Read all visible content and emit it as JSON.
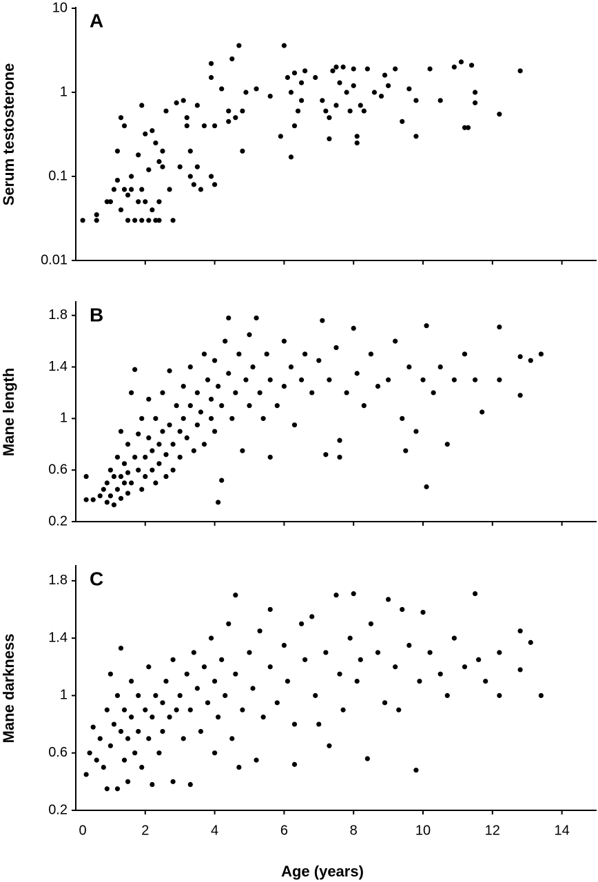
{
  "chart_data": [
    {
      "type": "scatter",
      "panel": "A",
      "y_label": "Serum testosterone",
      "log_y": true,
      "color": "#000000",
      "xlim": [
        0,
        15
      ],
      "xticks": [
        0,
        2,
        4,
        6,
        8,
        10,
        12,
        14
      ],
      "ylim": [
        0.01,
        10
      ],
      "yticks": [
        0.01,
        0.1,
        1,
        10
      ],
      "x": [
        0.2,
        0.6,
        0.6,
        0.9,
        1.0,
        1.1,
        1.2,
        1.2,
        1.3,
        1.3,
        1.4,
        1.4,
        1.5,
        1.5,
        1.6,
        1.6,
        1.7,
        1.8,
        1.8,
        1.9,
        1.9,
        1.9,
        2.0,
        2.0,
        2.1,
        2.1,
        2.2,
        2.2,
        2.3,
        2.3,
        2.4,
        2.4,
        2.4,
        2.5,
        2.5,
        2.6,
        2.7,
        2.8,
        2.9,
        3.0,
        3.1,
        3.2,
        3.2,
        3.3,
        3.3,
        3.4,
        3.5,
        3.5,
        3.6,
        3.7,
        3.9,
        3.9,
        3.9,
        4.0,
        4.0,
        4.2,
        4.4,
        4.4,
        4.5,
        4.6,
        4.7,
        4.8,
        4.8,
        4.9,
        5.2,
        5.6,
        5.9,
        6.0,
        6.1,
        6.2,
        6.2,
        6.3,
        6.3,
        6.4,
        6.5,
        6.5,
        6.6,
        6.9,
        7.1,
        7.2,
        7.3,
        7.3,
        7.4,
        7.5,
        7.5,
        7.6,
        7.7,
        7.8,
        7.9,
        8.0,
        8.0,
        8.1,
        8.1,
        8.2,
        8.3,
        8.4,
        8.6,
        8.8,
        8.9,
        9.0,
        9.2,
        9.4,
        9.6,
        9.8,
        9.8,
        10.2,
        10.5,
        10.9,
        11.1,
        11.2,
        11.3,
        11.4,
        11.5,
        11.5,
        12.2,
        12.8
      ],
      "values": [
        0.03,
        0.03,
        0.035,
        0.05,
        0.05,
        0.07,
        0.09,
        0.2,
        0.5,
        0.04,
        0.4,
        0.07,
        0.03,
        0.06,
        0.1,
        0.07,
        0.03,
        0.05,
        0.18,
        0.03,
        0.07,
        0.7,
        0.32,
        0.05,
        0.12,
        0.03,
        0.35,
        0.04,
        0.25,
        0.03,
        0.03,
        0.05,
        0.15,
        0.2,
        0.13,
        0.6,
        0.07,
        0.03,
        0.75,
        0.13,
        0.8,
        0.5,
        0.4,
        0.2,
        0.1,
        0.08,
        0.7,
        0.13,
        0.07,
        0.4,
        0.1,
        2.2,
        1.5,
        0.4,
        0.08,
        1.1,
        0.6,
        0.45,
        2.5,
        0.5,
        3.6,
        0.2,
        0.6,
        1.0,
        1.1,
        0.9,
        0.3,
        3.6,
        1.5,
        0.17,
        1.0,
        0.4,
        1.7,
        0.6,
        0.8,
        1.3,
        1.8,
        1.5,
        0.8,
        0.6,
        0.28,
        0.5,
        1.8,
        2.0,
        0.7,
        1.3,
        2.0,
        1.0,
        0.6,
        1.9,
        1.2,
        0.25,
        0.3,
        0.7,
        0.6,
        1.9,
        1.0,
        0.9,
        1.6,
        1.2,
        1.9,
        0.45,
        1.1,
        0.8,
        0.3,
        1.9,
        0.8,
        2.0,
        2.3,
        0.38,
        0.38,
        2.1,
        0.75,
        1.0,
        0.55,
        1.8
      ]
    },
    {
      "type": "scatter",
      "panel": "B",
      "y_label": "Mane length",
      "log_y": false,
      "color": "#000000",
      "xlim": [
        0,
        15
      ],
      "xticks": [
        0,
        2,
        4,
        6,
        8,
        10,
        12,
        14
      ],
      "ylim": [
        0.2,
        1.9
      ],
      "yticks": [
        0.2,
        0.6,
        1,
        1.4,
        1.8
      ],
      "x": [
        0.3,
        0.3,
        0.5,
        0.7,
        0.8,
        0.9,
        0.9,
        1.0,
        1.0,
        1.1,
        1.1,
        1.2,
        1.2,
        1.3,
        1.3,
        1.3,
        1.4,
        1.4,
        1.5,
        1.5,
        1.5,
        1.6,
        1.6,
        1.7,
        1.7,
        1.8,
        1.8,
        1.9,
        1.9,
        2.0,
        2.0,
        2.1,
        2.1,
        2.2,
        2.2,
        2.3,
        2.3,
        2.4,
        2.4,
        2.5,
        2.5,
        2.6,
        2.6,
        2.7,
        2.7,
        2.8,
        2.8,
        2.9,
        3.0,
        3.0,
        3.1,
        3.1,
        3.2,
        3.3,
        3.3,
        3.4,
        3.5,
        3.5,
        3.6,
        3.7,
        3.7,
        3.8,
        3.9,
        3.9,
        4.0,
        4.0,
        4.1,
        4.1,
        4.2,
        4.2,
        4.3,
        4.4,
        4.4,
        4.5,
        4.6,
        4.7,
        4.8,
        4.9,
        5.0,
        5.0,
        5.1,
        5.2,
        5.3,
        5.4,
        5.5,
        5.6,
        5.6,
        5.8,
        6.0,
        6.0,
        6.2,
        6.3,
        6.5,
        6.6,
        6.8,
        7.0,
        7.1,
        7.2,
        7.3,
        7.5,
        7.6,
        7.6,
        7.8,
        8.0,
        8.1,
        8.3,
        8.5,
        8.7,
        9.0,
        9.2,
        9.4,
        9.5,
        9.6,
        9.8,
        10.0,
        10.1,
        10.1,
        10.3,
        10.5,
        10.7,
        10.9,
        11.2,
        11.5,
        11.7,
        12.2,
        12.2,
        12.8,
        12.8,
        13.1,
        13.4
      ],
      "values": [
        0.37,
        0.55,
        0.37,
        0.4,
        0.45,
        0.35,
        0.5,
        0.6,
        0.4,
        0.33,
        0.55,
        0.7,
        0.45,
        0.38,
        0.9,
        0.55,
        0.5,
        0.65,
        0.42,
        0.8,
        0.58,
        1.2,
        0.5,
        0.7,
        1.38,
        0.6,
        0.88,
        0.45,
        1.0,
        0.7,
        0.55,
        0.85,
        1.15,
        0.6,
        0.75,
        1.0,
        0.5,
        0.8,
        0.65,
        1.2,
        0.9,
        0.72,
        0.55,
        1.37,
        0.95,
        0.8,
        0.6,
        1.1,
        0.9,
        0.7,
        1.25,
        1.0,
        0.85,
        1.4,
        1.1,
        0.75,
        1.2,
        0.95,
        1.05,
        1.5,
        0.8,
        1.3,
        1.0,
        1.15,
        1.45,
        0.9,
        0.35,
        1.25,
        0.52,
        1.1,
        1.6,
        1.35,
        1.78,
        1.0,
        1.2,
        1.5,
        0.75,
        1.3,
        1.1,
        1.65,
        1.4,
        1.78,
        1.2,
        1.0,
        1.5,
        0.7,
        1.3,
        1.1,
        1.6,
        1.25,
        1.4,
        0.95,
        1.3,
        1.5,
        1.2,
        1.45,
        1.76,
        0.72,
        1.3,
        1.55,
        0.83,
        0.7,
        1.2,
        1.7,
        1.35,
        1.1,
        1.5,
        1.25,
        1.3,
        1.6,
        1.0,
        0.75,
        1.4,
        0.9,
        1.3,
        1.72,
        0.47,
        1.2,
        1.4,
        0.8,
        1.3,
        1.5,
        1.3,
        1.05,
        1.71,
        1.3,
        1.48,
        1.18,
        1.45,
        1.5
      ]
    },
    {
      "type": "scatter",
      "panel": "C",
      "y_label": "Mane darkness",
      "x_label": "Age (years)",
      "log_y": false,
      "color": "#000000",
      "xlim": [
        0,
        15
      ],
      "xticks": [
        0,
        2,
        4,
        6,
        8,
        10,
        12,
        14
      ],
      "ylim": [
        0.2,
        1.9
      ],
      "yticks": [
        0.2,
        0.6,
        1,
        1.4,
        1.8
      ],
      "x": [
        0.3,
        0.4,
        0.5,
        0.6,
        0.7,
        0.8,
        0.9,
        0.9,
        1.0,
        1.0,
        1.1,
        1.2,
        1.2,
        1.3,
        1.3,
        1.4,
        1.4,
        1.5,
        1.5,
        1.6,
        1.6,
        1.7,
        1.8,
        1.8,
        1.9,
        2.0,
        2.1,
        2.1,
        2.2,
        2.2,
        2.3,
        2.4,
        2.5,
        2.5,
        2.6,
        2.7,
        2.8,
        2.8,
        2.9,
        3.0,
        3.1,
        3.2,
        3.3,
        3.3,
        3.4,
        3.5,
        3.6,
        3.7,
        3.8,
        3.9,
        4.0,
        4.0,
        4.1,
        4.2,
        4.3,
        4.4,
        4.5,
        4.6,
        4.6,
        4.7,
        4.8,
        5.0,
        5.1,
        5.2,
        5.3,
        5.4,
        5.6,
        5.6,
        5.8,
        6.0,
        6.1,
        6.3,
        6.3,
        6.5,
        6.6,
        6.8,
        6.9,
        7.0,
        7.2,
        7.3,
        7.5,
        7.6,
        7.7,
        7.9,
        8.0,
        8.1,
        8.2,
        8.4,
        8.5,
        8.7,
        8.9,
        9.0,
        9.2,
        9.3,
        9.4,
        9.6,
        9.8,
        9.9,
        10.0,
        10.2,
        10.5,
        10.7,
        10.9,
        11.2,
        11.5,
        11.6,
        11.8,
        12.2,
        12.2,
        12.8,
        12.8,
        13.1,
        13.4
      ],
      "values": [
        0.45,
        0.6,
        0.78,
        0.55,
        0.7,
        0.5,
        0.35,
        0.9,
        1.15,
        0.65,
        0.8,
        0.35,
        1.0,
        1.33,
        0.75,
        0.55,
        0.9,
        0.7,
        0.4,
        1.1,
        0.85,
        0.6,
        1.0,
        0.75,
        0.5,
        0.9,
        1.2,
        0.7,
        0.38,
        0.85,
        1.0,
        0.6,
        0.95,
        0.75,
        1.1,
        0.85,
        1.25,
        0.4,
        0.9,
        1.0,
        0.7,
        1.15,
        0.38,
        0.9,
        1.3,
        1.05,
        0.75,
        1.2,
        0.95,
        1.4,
        1.1,
        0.6,
        0.85,
        1.25,
        1.0,
        1.5,
        0.7,
        1.7,
        1.15,
        0.5,
        0.9,
        1.3,
        1.05,
        0.55,
        1.45,
        0.85,
        1.6,
        1.2,
        0.95,
        1.35,
        1.1,
        0.52,
        0.8,
        1.5,
        1.25,
        1.55,
        1.0,
        0.8,
        1.3,
        0.65,
        1.7,
        1.15,
        0.9,
        1.4,
        1.71,
        1.1,
        1.25,
        0.56,
        1.5,
        1.3,
        0.95,
        1.67,
        1.2,
        0.9,
        1.6,
        1.35,
        0.48,
        1.1,
        1.58,
        1.3,
        1.15,
        1.0,
        1.4,
        1.2,
        1.71,
        1.25,
        1.1,
        1.3,
        1.0,
        1.45,
        1.18,
        1.37,
        1.0
      ]
    }
  ]
}
